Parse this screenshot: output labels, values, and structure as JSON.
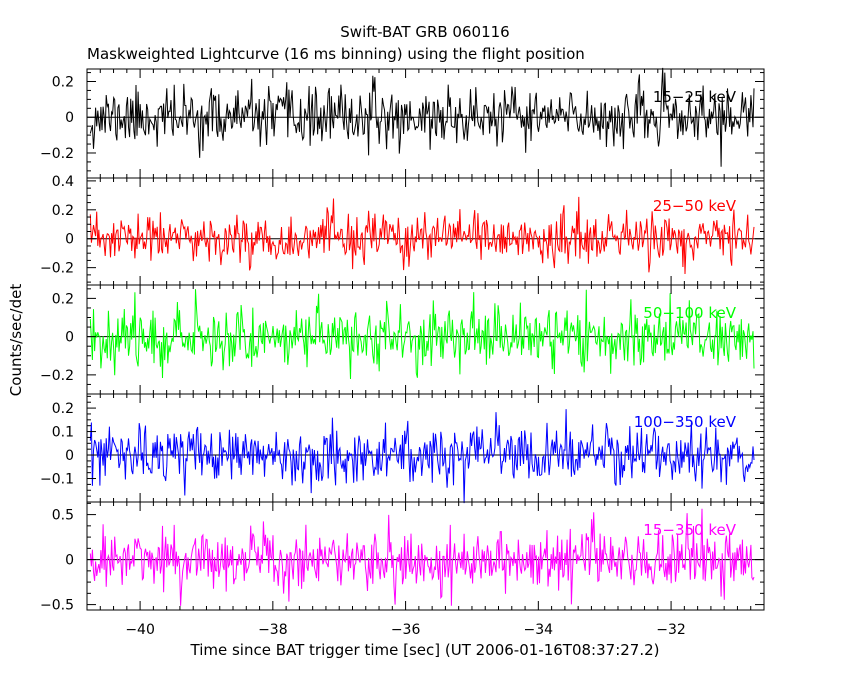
{
  "chart_data": {
    "type": "line",
    "title": "Swift-BAT GRB 060116",
    "subtitle": "Maskweighted Lightcurve (16 ms binning) using the flight position",
    "xlabel": "Time since BAT trigger time [sec] (UT 2006-01-16T08:37:27.2)",
    "ylabel": "Counts/sec/det",
    "xlim": [
      -40.8,
      -30.6
    ],
    "x_ticks": [
      -40,
      -38,
      -36,
      -34,
      -32
    ],
    "x_tick_labels": [
      "−40",
      "−38",
      "−36",
      "−34",
      "−32"
    ],
    "bin_width_s": 0.016,
    "panels": [
      {
        "band": "15−25 keV",
        "color": "#000000",
        "ylim": [
          -0.34,
          0.27
        ],
        "y_ticks": [
          -0.2,
          0,
          0.2
        ],
        "y_tick_labels": [
          "−0.2",
          "0",
          "0.2"
        ],
        "noise_sigma": 0.08,
        "seed": 11
      },
      {
        "band": "25−50 keV",
        "color": "#ff0000",
        "ylim": [
          -0.32,
          0.42
        ],
        "y_ticks": [
          -0.2,
          0,
          0.2,
          0.4
        ],
        "y_tick_labels": [
          "−0.2",
          "0",
          "0.2",
          "0.4"
        ],
        "noise_sigma": 0.085,
        "seed": 23
      },
      {
        "band": "50−100 keV",
        "color": "#00ff00",
        "ylim": [
          -0.3,
          0.27
        ],
        "y_ticks": [
          -0.2,
          0,
          0.2
        ],
        "y_tick_labels": [
          "−0.2",
          "0",
          "0.2"
        ],
        "noise_sigma": 0.08,
        "seed": 37
      },
      {
        "band": "100−350 keV",
        "color": "#0000ff",
        "ylim": [
          -0.2,
          0.26
        ],
        "y_ticks": [
          -0.1,
          0,
          0.1,
          0.2
        ],
        "y_tick_labels": [
          "−0.1",
          "0",
          "0.1",
          "0.2"
        ],
        "noise_sigma": 0.06,
        "seed": 53
      },
      {
        "band": "15−350 keV",
        "color": "#ff00ff",
        "ylim": [
          -0.56,
          0.64
        ],
        "y_ticks": [
          -0.5,
          0,
          0.5
        ],
        "y_tick_labels": [
          "−0.5",
          "0",
          "0.5"
        ],
        "noise_sigma": 0.17,
        "seed": 71
      }
    ]
  }
}
